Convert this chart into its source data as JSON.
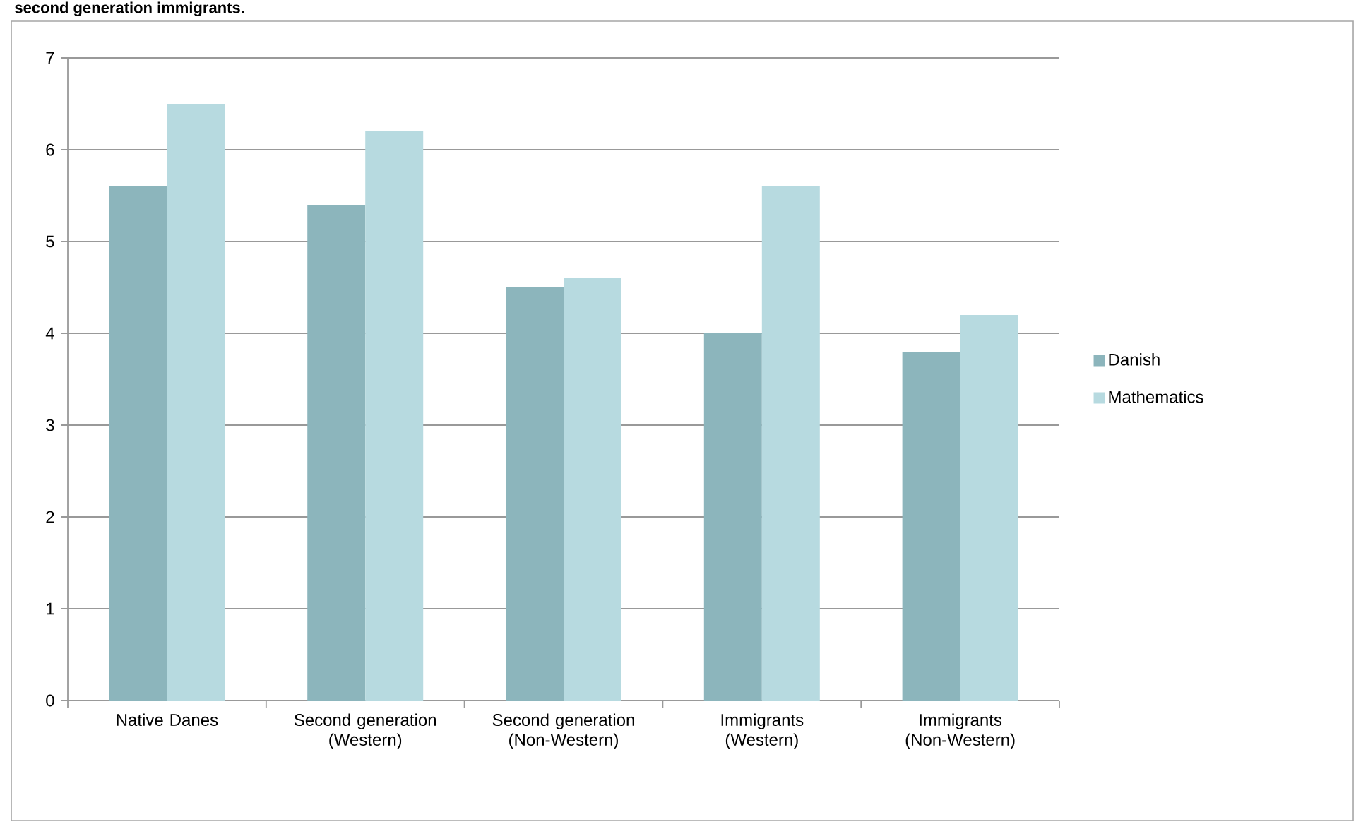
{
  "chart_data": {
    "type": "bar",
    "title": "second generation immigrants.",
    "categories": [
      "Native Danes",
      "Second generation (Western)",
      "Second generation (Non-Western)",
      "Immigrants (Western)",
      "Immigrants (Non-Western)"
    ],
    "series": [
      {
        "name": "Danish",
        "color": "#8cb5bc",
        "values": [
          5.6,
          5.4,
          4.5,
          4.0,
          3.8
        ]
      },
      {
        "name": "Mathematics",
        "color": "#b7dae0",
        "values": [
          6.5,
          6.2,
          4.6,
          5.6,
          4.2
        ]
      }
    ],
    "ylim": [
      0,
      7
    ],
    "yticks": [
      0,
      1,
      2,
      3,
      4,
      5,
      6,
      7
    ],
    "grid": "y",
    "legend": "right"
  }
}
